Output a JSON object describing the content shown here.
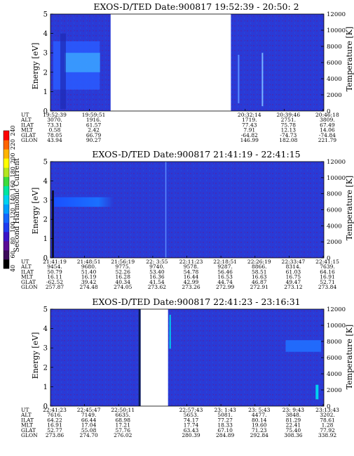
{
  "colorbar": {
    "label": "Second Harmonic Current",
    "ticks": [
      "40",
      "60",
      "80",
      "100",
      "120",
      "140",
      "160",
      "180",
      "200",
      "220",
      "240"
    ],
    "colors": [
      "#000000",
      "#3c0a5a",
      "#5a0a96",
      "#3a14c8",
      "#1e3cf0",
      "#1466ff",
      "#00a0ff",
      "#00d2f0",
      "#00e6a0",
      "#3cdc3c",
      "#b4e61e",
      "#ffff00",
      "#ffb400",
      "#ff6400",
      "#ff0000"
    ]
  },
  "ephem_labels": [
    "UT",
    "ALT",
    "ILAT",
    "MLT",
    "GLAT",
    "GLON"
  ],
  "chart_data": [
    {
      "type": "heatmap",
      "title": "EXOS-D/TED   Date:900817  19:52:39 - 20:50: 2",
      "ylabel": "Energy [eV]",
      "ylabel_right": "Temperature [K]",
      "ylim": [
        0,
        5
      ],
      "yticks": [
        "0",
        "1",
        "2",
        "3",
        "4",
        "5"
      ],
      "ylim_right": [
        0,
        12000
      ],
      "yticks_right": [
        "0",
        "2000",
        "4000",
        "6000",
        "8000",
        "10000",
        "12000"
      ],
      "data_gaps": [
        [
          0.22,
          0.66
        ]
      ],
      "ephemeris": [
        {
          "UT": "19:52:39",
          "ALT": "3070.",
          "ILAT": "73.31",
          "MLT": "0.58",
          "GLAT": "78.05",
          "GLON": "43.94"
        },
        {
          "UT": "19:59:51",
          "ALT": "1916.",
          "ILAT": "61.57",
          "MLT": "2.42",
          "GLAT": "66.79",
          "GLON": "90.27"
        },
        {
          "UT": "",
          "ALT": "",
          "ILAT": "",
          "MLT": "",
          "GLAT": "",
          "GLON": ""
        },
        {
          "UT": "",
          "ALT": "",
          "ILAT": "",
          "MLT": "",
          "GLAT": "",
          "GLON": ""
        },
        {
          "UT": "",
          "ALT": "",
          "ILAT": "",
          "MLT": "",
          "GLAT": "",
          "GLON": ""
        },
        {
          "UT": "20:32:14",
          "ALT": "1719.",
          "ILAT": "77.43",
          "MLT": "7.91",
          "GLAT": "-64.82",
          "GLON": "146.99"
        },
        {
          "UT": "20:39:46",
          "ALT": "2751.",
          "ILAT": "75.78",
          "MLT": "12.13",
          "GLAT": "-74.73",
          "GLON": "182.08"
        },
        {
          "UT": "20:46:18",
          "ALT": "3809.",
          "ILAT": "67.49",
          "MLT": "14.06",
          "GLAT": "-74.84",
          "GLON": "221.79"
        }
      ]
    },
    {
      "type": "heatmap",
      "title": "EXOS-D/TED   Date:900817  21:41:19 - 22:41:15",
      "ylabel": "Energy [eV]",
      "ylabel_right": "Temperature [K]",
      "ylim": [
        0,
        5
      ],
      "yticks": [
        "0",
        "1",
        "2",
        "3",
        "4",
        "5"
      ],
      "ylim_right": [
        0,
        12000
      ],
      "yticks_right": [
        "0",
        "2000",
        "4000",
        "6000",
        "8000",
        "10000",
        "12000"
      ],
      "data_gaps": [],
      "ephemeris": [
        {
          "UT": "21:41:19",
          "ALT": "9454.",
          "ILAT": "50.79",
          "MLT": "16.11",
          "GLAT": "-62.52",
          "GLON": "257.87"
        },
        {
          "UT": "21:48:51",
          "ALT": "9680.",
          "ILAT": "51.40",
          "MLT": "16.19",
          "GLAT": "39.42",
          "GLON": "274.48"
        },
        {
          "UT": "21:56:19",
          "ALT": "9775.",
          "ILAT": "52.26",
          "MLT": "16.28",
          "GLAT": "40.34",
          "GLON": "274.05"
        },
        {
          "UT": "22: 3:55",
          "ALT": "9740.",
          "ILAT": "53.40",
          "MLT": "16.36",
          "GLAT": "41.54",
          "GLON": "273.62"
        },
        {
          "UT": "22:11:23",
          "ALT": "9578.",
          "ILAT": "54.78",
          "MLT": "16.44",
          "GLAT": "42.99",
          "GLON": "273.26"
        },
        {
          "UT": "22:18:51",
          "ALT": "9287.",
          "ILAT": "56.46",
          "MLT": "16.53",
          "GLAT": "44.74",
          "GLON": "272.99"
        },
        {
          "UT": "22:26:19",
          "ALT": "8866.",
          "ILAT": "58.51",
          "MLT": "16.63",
          "GLAT": "46.87",
          "GLON": "272.91"
        },
        {
          "UT": "22:33:47",
          "ALT": "8314.",
          "ILAT": "61.03",
          "MLT": "16.75",
          "GLAT": "49.47",
          "GLON": "273.12"
        },
        {
          "UT": "22:41:15",
          "ALT": "7639.",
          "ILAT": "64.16",
          "MLT": "16.91",
          "GLAT": "52.71",
          "GLON": "273.84"
        }
      ]
    },
    {
      "type": "heatmap",
      "title": "EXOS-D/TED   Date:900817  22:41:23 - 23:16:31",
      "ylabel": "Energy [eV]",
      "ylabel_right": "Temperature [K]",
      "ylim": [
        0,
        5
      ],
      "yticks": [
        "0",
        "1",
        "2",
        "3",
        "4",
        "5"
      ],
      "ylim_right": [
        0,
        12000
      ],
      "yticks_right": [
        "0",
        "2000",
        "4000",
        "6000",
        "8000",
        "10000",
        "12000"
      ],
      "data_gaps": [
        [
          0.33,
          0.43
        ]
      ],
      "ephemeris": [
        {
          "UT": "22:41:23",
          "ALT": "7616.",
          "ILAT": "64.22",
          "MLT": "16.91",
          "GLAT": "52.77",
          "GLON": "273.86"
        },
        {
          "UT": "22:45:47",
          "ALT": "7149.",
          "ILAT": "66.44",
          "MLT": "17.04",
          "GLAT": "55.08",
          "GLON": "274.70"
        },
        {
          "UT": "22:50:11",
          "ALT": "6635.",
          "ILAT": "68.98",
          "MLT": "17.21",
          "GLAT": "57.76",
          "GLON": "276.02"
        },
        {
          "UT": "",
          "ALT": "",
          "ILAT": "",
          "MLT": "",
          "GLAT": "",
          "GLON": ""
        },
        {
          "UT": "22:57:43",
          "ALT": "5653.",
          "ILAT": "74.17",
          "MLT": "17.74",
          "GLAT": "63.43",
          "GLON": "280.39"
        },
        {
          "UT": "23: 1:43",
          "ALT": "5081.",
          "ILAT": "77.27",
          "MLT": "18.33",
          "GLAT": "67.10",
          "GLON": "284.89"
        },
        {
          "UT": "23: 5:43",
          "ALT": "4477.",
          "ILAT": "80.14",
          "MLT": "19.60",
          "GLAT": "71.23",
          "GLON": "292.84"
        },
        {
          "UT": "23: 9:43",
          "ALT": "3848.",
          "ILAT": "81.29",
          "MLT": "22.41",
          "GLAT": "75.40",
          "GLON": "308.36"
        },
        {
          "UT": "23:13:43",
          "ALT": "3202.",
          "ILAT": "78.61",
          "MLT": "1.28",
          "GLAT": "77.92",
          "GLON": "338.92"
        }
      ]
    }
  ]
}
